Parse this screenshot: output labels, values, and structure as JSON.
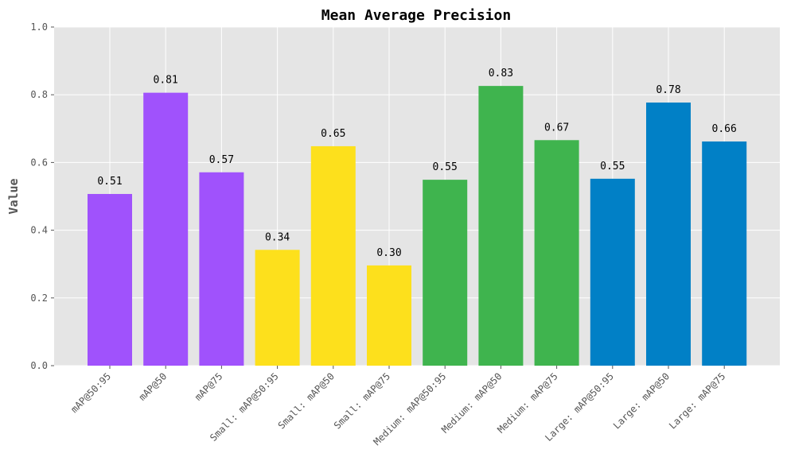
{
  "chart_data": {
    "type": "bar",
    "title": "Mean Average Precision",
    "xlabel": "",
    "ylabel": "Value",
    "ylim": [
      0,
      1.0
    ],
    "yticks": [
      "0.0",
      "0.2",
      "0.4",
      "0.6",
      "0.8",
      "1.0"
    ],
    "grid": true,
    "categories": [
      "mAP@50:95",
      "mAP@50",
      "mAP@75",
      "Small: mAP@50:95",
      "Small: mAP@50",
      "Small: mAP@75",
      "Medium: mAP@50:95",
      "Medium: mAP@50",
      "Medium: mAP@75",
      "Large: mAP@50:95",
      "Large: mAP@50",
      "Large: mAP@75"
    ],
    "values": [
      0.507,
      0.806,
      0.571,
      0.342,
      0.648,
      0.296,
      0.549,
      0.826,
      0.666,
      0.552,
      0.777,
      0.662
    ],
    "value_labels": [
      "0.51",
      "0.81",
      "0.57",
      "0.34",
      "0.65",
      "0.30",
      "0.55",
      "0.83",
      "0.67",
      "0.55",
      "0.78",
      "0.66"
    ],
    "colors": [
      "#a052fc",
      "#a052fc",
      "#a052fc",
      "#fde01c",
      "#fde01c",
      "#fde01c",
      "#3fb44e",
      "#3fb44e",
      "#3fb44e",
      "#0180c6",
      "#0180c6",
      "#0180c6"
    ],
    "background_color": "#e5e5e5",
    "grid_color": "#ffffff"
  }
}
